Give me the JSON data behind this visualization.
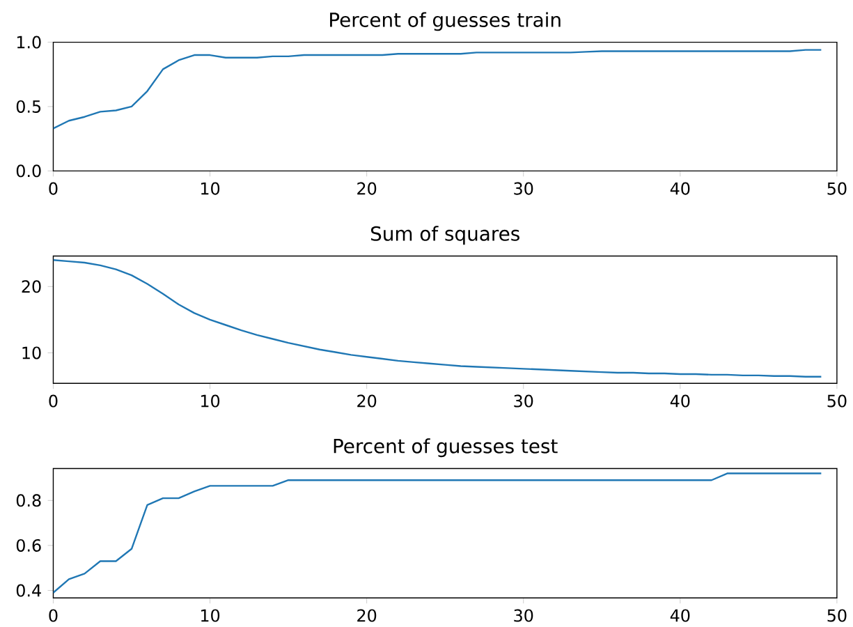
{
  "chart_data": [
    {
      "type": "line",
      "title": "Percent of guesses train",
      "x": [
        0,
        1,
        2,
        3,
        4,
        5,
        6,
        7,
        8,
        9,
        10,
        11,
        12,
        13,
        14,
        15,
        16,
        17,
        18,
        19,
        20,
        21,
        22,
        23,
        24,
        25,
        26,
        27,
        28,
        29,
        30,
        31,
        32,
        33,
        34,
        35,
        36,
        37,
        38,
        39,
        40,
        41,
        42,
        43,
        44,
        45,
        46,
        47,
        48,
        49
      ],
      "series": [
        {
          "color": "#1f77b4",
          "values": [
            0.33,
            0.39,
            0.42,
            0.46,
            0.47,
            0.5,
            0.62,
            0.79,
            0.86,
            0.9,
            0.9,
            0.88,
            0.88,
            0.88,
            0.89,
            0.89,
            0.9,
            0.9,
            0.9,
            0.9,
            0.9,
            0.9,
            0.91,
            0.91,
            0.91,
            0.91,
            0.91,
            0.92,
            0.92,
            0.92,
            0.92,
            0.92,
            0.92,
            0.92,
            0.925,
            0.93,
            0.93,
            0.93,
            0.93,
            0.93,
            0.93,
            0.93,
            0.93,
            0.93,
            0.93,
            0.93,
            0.93,
            0.93,
            0.94,
            0.94
          ]
        }
      ],
      "xlim": [
        0,
        50
      ],
      "xticks": [
        0,
        10,
        20,
        30,
        40,
        50
      ],
      "ylim": [
        0,
        1
      ],
      "yticks": [
        {
          "value": 0,
          "label": "0.0"
        },
        0.5,
        {
          "value": 1,
          "label": "1.0"
        }
      ]
    },
    {
      "type": "line",
      "title": "Sum of squares",
      "x": [
        0,
        1,
        2,
        3,
        4,
        5,
        6,
        7,
        8,
        9,
        10,
        11,
        12,
        13,
        14,
        15,
        16,
        17,
        18,
        19,
        20,
        21,
        22,
        23,
        24,
        25,
        26,
        27,
        28,
        29,
        30,
        31,
        32,
        33,
        34,
        35,
        36,
        37,
        38,
        39,
        40,
        41,
        42,
        43,
        44,
        45,
        46,
        47,
        48,
        49
      ],
      "series": [
        {
          "color": "#1f77b4",
          "values": [
            24.0,
            23.8,
            23.6,
            23.2,
            22.6,
            21.7,
            20.4,
            18.9,
            17.3,
            16.0,
            15.0,
            14.2,
            13.4,
            12.7,
            12.1,
            11.5,
            11.0,
            10.5,
            10.1,
            9.7,
            9.4,
            9.1,
            8.8,
            8.6,
            8.4,
            8.2,
            8.0,
            7.9,
            7.8,
            7.7,
            7.6,
            7.5,
            7.4,
            7.3,
            7.2,
            7.1,
            7.0,
            7.0,
            6.9,
            6.9,
            6.8,
            6.8,
            6.7,
            6.7,
            6.6,
            6.6,
            6.5,
            6.5,
            6.4,
            6.4
          ]
        }
      ],
      "xlim": [
        0,
        50
      ],
      "xticks": [
        0,
        10,
        20,
        30,
        40,
        50
      ],
      "ylim": [
        5.4,
        24.6
      ],
      "yticks": [
        10,
        20
      ]
    },
    {
      "type": "line",
      "title": "Percent of guesses test",
      "x": [
        0,
        1,
        2,
        3,
        4,
        5,
        6,
        7,
        8,
        9,
        10,
        11,
        12,
        13,
        14,
        15,
        16,
        17,
        18,
        19,
        20,
        21,
        22,
        23,
        24,
        25,
        26,
        27,
        28,
        29,
        30,
        31,
        32,
        33,
        34,
        35,
        36,
        37,
        38,
        39,
        40,
        41,
        42,
        43,
        44,
        45,
        46,
        47,
        48,
        49
      ],
      "series": [
        {
          "color": "#1f77b4",
          "values": [
            0.39,
            0.45,
            0.475,
            0.53,
            0.53,
            0.585,
            0.78,
            0.81,
            0.81,
            0.84,
            0.865,
            0.865,
            0.865,
            0.865,
            0.865,
            0.89,
            0.89,
            0.89,
            0.89,
            0.89,
            0.89,
            0.89,
            0.89,
            0.89,
            0.89,
            0.89,
            0.89,
            0.89,
            0.89,
            0.89,
            0.89,
            0.89,
            0.89,
            0.89,
            0.89,
            0.89,
            0.89,
            0.89,
            0.89,
            0.89,
            0.89,
            0.89,
            0.89,
            0.92,
            0.92,
            0.92,
            0.92,
            0.92,
            0.92,
            0.92
          ]
        }
      ],
      "xlim": [
        0,
        50
      ],
      "xticks": [
        0,
        10,
        20,
        30,
        40,
        50
      ],
      "ylim": [
        0.367,
        0.942
      ],
      "yticks": [
        0.4,
        0.6,
        0.8
      ]
    }
  ]
}
